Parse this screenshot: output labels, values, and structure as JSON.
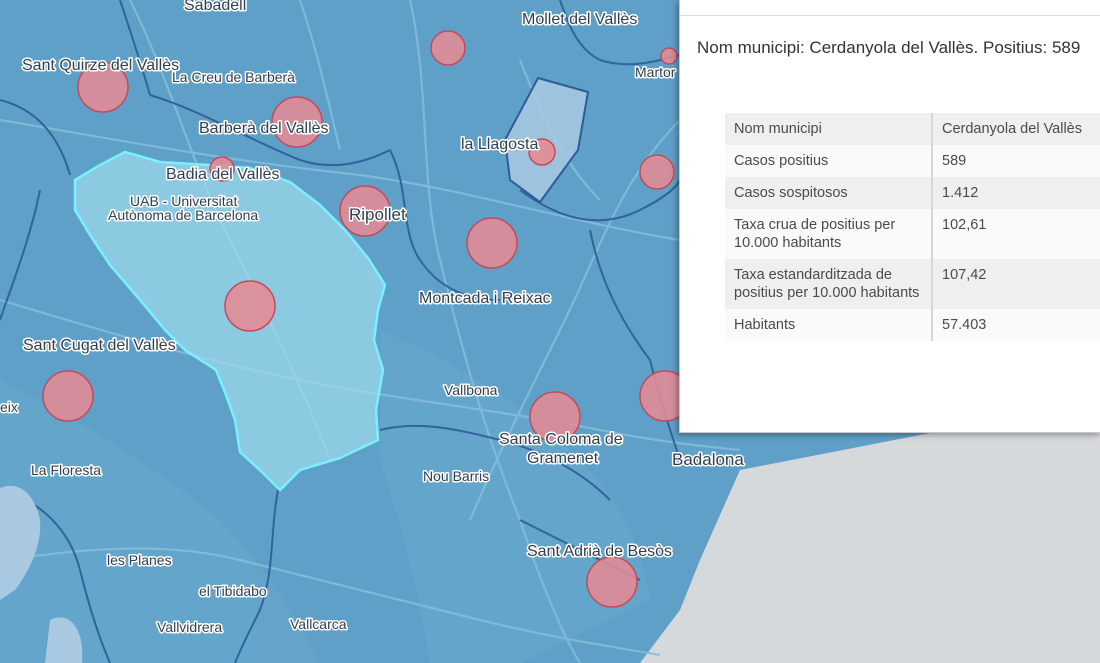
{
  "map": {
    "places": [
      {
        "name": "Sabadell"
      },
      {
        "name": "Mollet del Vallès"
      },
      {
        "name": "Sant Quirze del Vallès"
      },
      {
        "name": "La Creu de Barberà"
      },
      {
        "name": "Barberà del Vallès"
      },
      {
        "name": "la Llagosta"
      },
      {
        "name": "Badia del Vallès"
      },
      {
        "name": "UAB - Universitat"
      },
      {
        "name": "Autònoma de Barcelona"
      },
      {
        "name": "Ripollet"
      },
      {
        "name": "Montcada i Reixac"
      },
      {
        "name": "Sant Cugat del Vallès"
      },
      {
        "name": "Vallbona"
      },
      {
        "name": "Santa Coloma de"
      },
      {
        "name": "Gramenet"
      },
      {
        "name": "Badalona"
      },
      {
        "name": "La Floresta"
      },
      {
        "name": "Nou Barris"
      },
      {
        "name": "Sant Adrià de Besòs"
      },
      {
        "name": "les Planes"
      },
      {
        "name": "el Tibidabo"
      },
      {
        "name": "Vallvidrera"
      },
      {
        "name": "Vallcarca"
      },
      {
        "name": "Martor"
      },
      {
        "name": "eix"
      }
    ],
    "highlight_color": "#9fdcec",
    "bubble_color": "#e58a94"
  },
  "popup": {
    "title": "Nom municipi: Cerdanyola del Vallès. Positius: 589",
    "rows": [
      {
        "key": "Nom municipi",
        "value": "Cerdanyola del Vallès"
      },
      {
        "key": "Casos positius",
        "value": "589"
      },
      {
        "key": "Casos sospitosos",
        "value": "1.412"
      },
      {
        "key": "Taxa crua de positius per 10.000 habitants",
        "value": "102,61"
      },
      {
        "key": "Taxa estandarditzada de positius per 10.000 habitants",
        "value": "107,42"
      },
      {
        "key": "Habitants",
        "value": "57.403"
      }
    ]
  }
}
